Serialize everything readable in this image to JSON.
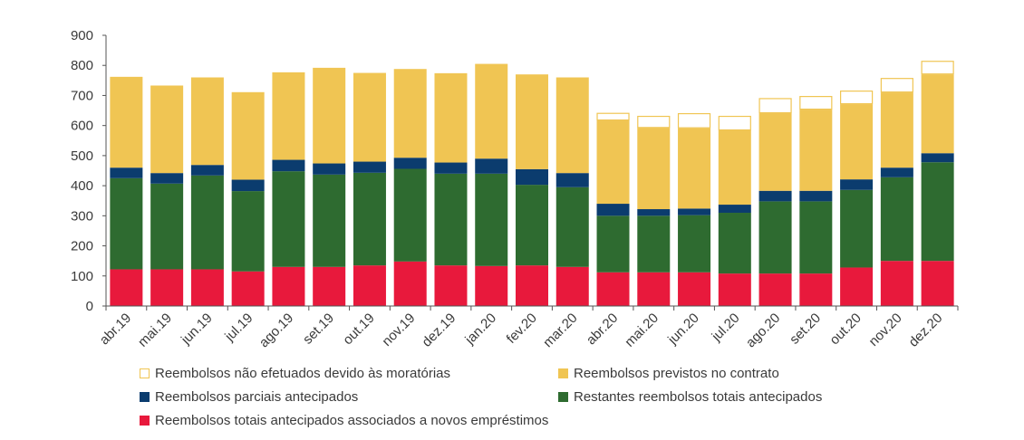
{
  "chart_data": {
    "type": "bar",
    "stacked": true,
    "categories": [
      "abr.19",
      "mai.19",
      "jun.19",
      "jul.19",
      "ago.19",
      "set.19",
      "out.19",
      "nov.19",
      "dez.19",
      "jan.20",
      "fev.20",
      "mar.20",
      "abr.20",
      "mai.20",
      "jun.20",
      "jul.20",
      "ago.20",
      "set.20",
      "out.20",
      "nov.20",
      "dez.20"
    ],
    "ylim": [
      0,
      900
    ],
    "yticks": [
      0,
      100,
      200,
      300,
      400,
      500,
      600,
      700,
      800,
      900
    ],
    "ytick_labels": [
      "0",
      "100",
      "200",
      "300",
      "400",
      "500",
      "600",
      "700",
      "800",
      "900"
    ],
    "grid": false,
    "series": [
      {
        "key": "totais_novos",
        "name": "Reembolsos totais antecipados associados a novos empréstimos",
        "color": "#e8193c",
        "values": [
          122,
          122,
          122,
          115,
          130,
          130,
          135,
          148,
          135,
          133,
          135,
          130,
          112,
          112,
          112,
          108,
          108,
          108,
          128,
          150,
          150
        ]
      },
      {
        "key": "restantes_totais",
        "name": "Restantes reembolsos totais antecipados",
        "color": "#2e6b30",
        "values": [
          303,
          285,
          312,
          267,
          318,
          307,
          308,
          308,
          305,
          307,
          268,
          265,
          188,
          188,
          190,
          202,
          240,
          240,
          258,
          278,
          328
        ]
      },
      {
        "key": "parciais",
        "name": "Reembolsos parciais antecipados",
        "color": "#0b3c6e",
        "values": [
          35,
          35,
          35,
          38,
          38,
          37,
          37,
          37,
          37,
          50,
          52,
          47,
          40,
          22,
          22,
          27,
          35,
          35,
          35,
          32,
          30
        ]
      },
      {
        "key": "previstos",
        "name": "Reembolsos previstos no contrato",
        "color": "#f0c553",
        "values": [
          302,
          291,
          291,
          291,
          291,
          318,
          295,
          295,
          297,
          315,
          315,
          318,
          277,
          270,
          267,
          247,
          258,
          270,
          250,
          250,
          262
        ]
      },
      {
        "key": "nao_efetuados",
        "name": "Reembolsos não efetuados devido às moratórias",
        "color": "#ffffff",
        "border": "#f0c553",
        "values": [
          0,
          0,
          0,
          0,
          0,
          0,
          0,
          0,
          0,
          0,
          0,
          0,
          25,
          40,
          50,
          48,
          50,
          45,
          45,
          48,
          45
        ]
      }
    ],
    "legend": {
      "placement": "bottom",
      "order": [
        "nao_efetuados",
        "previstos",
        "parciais",
        "restantes_totais",
        "totais_novos"
      ]
    }
  }
}
